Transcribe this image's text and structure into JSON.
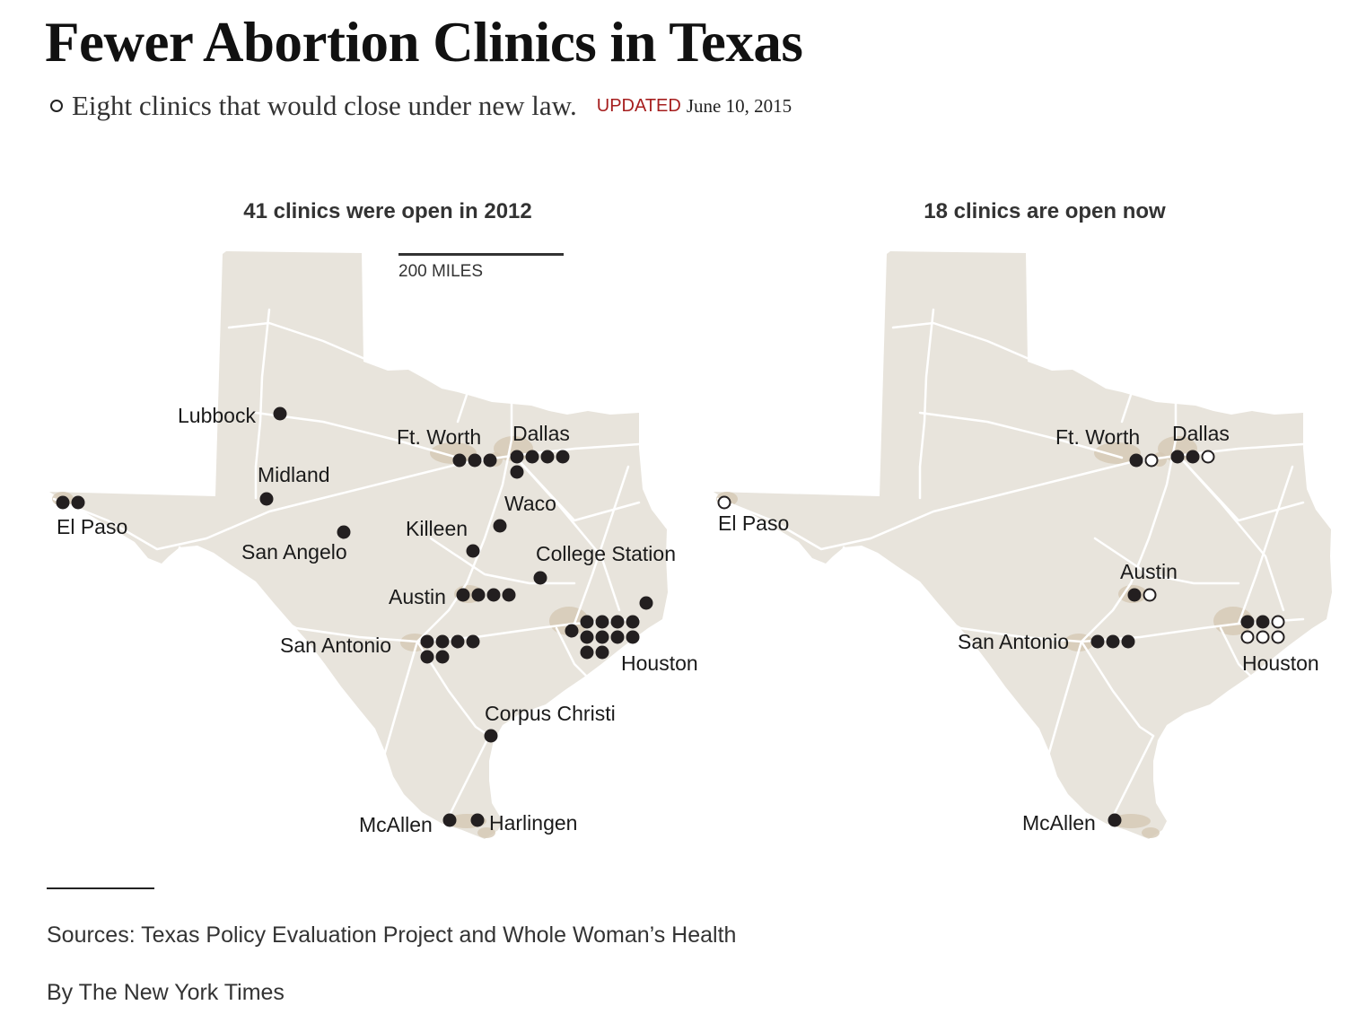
{
  "title": "Fewer Abortion Clinics in Texas",
  "legend": {
    "icon": "open-circle",
    "text": "Eight clinics that would close under new law."
  },
  "updated": {
    "label": "UPDATED",
    "date": "June 10, 2015"
  },
  "scale_label": "200 MILES",
  "colors": {
    "land": "#e8e4dc",
    "roads": "#ffffff",
    "urban": "#d4c8b4",
    "clinic_fill": "#231f20",
    "updated_red": "#a61e1e"
  },
  "maps": [
    {
      "title": "41 clinics were open in 2012",
      "cities": [
        {
          "name": "Lubbock",
          "open": 1,
          "closing": 0
        },
        {
          "name": "Midland",
          "open": 1,
          "closing": 0
        },
        {
          "name": "El Paso",
          "open": 2,
          "closing": 0
        },
        {
          "name": "San Angelo",
          "open": 1,
          "closing": 0
        },
        {
          "name": "Ft. Worth",
          "open": 3,
          "closing": 0
        },
        {
          "name": "Dallas",
          "open": 5,
          "closing": 0
        },
        {
          "name": "Waco",
          "open": 1,
          "closing": 0
        },
        {
          "name": "Killeen",
          "open": 1,
          "closing": 0
        },
        {
          "name": "College Station",
          "open": 1,
          "closing": 0
        },
        {
          "name": "Austin",
          "open": 4,
          "closing": 0
        },
        {
          "name": "San Antonio",
          "open": 6,
          "closing": 0
        },
        {
          "name": "Houston",
          "open": 12,
          "closing": 0
        },
        {
          "name": "Corpus Christi",
          "open": 1,
          "closing": 0
        },
        {
          "name": "McAllen",
          "open": 1,
          "closing": 0
        },
        {
          "name": "Harlingen",
          "open": 1,
          "closing": 0
        }
      ]
    },
    {
      "title": "18 clinics are open now",
      "cities": [
        {
          "name": "Ft. Worth",
          "open": 1,
          "closing": 1
        },
        {
          "name": "Dallas",
          "open": 2,
          "closing": 1
        },
        {
          "name": "El Paso",
          "open": 0,
          "closing": 1
        },
        {
          "name": "Austin",
          "open": 1,
          "closing": 1
        },
        {
          "name": "San Antonio",
          "open": 3,
          "closing": 0
        },
        {
          "name": "Houston",
          "open": 2,
          "closing": 4
        },
        {
          "name": "McAllen",
          "open": 1,
          "closing": 0
        }
      ]
    }
  ],
  "sources": "Sources: Texas Policy Evaluation Project and Whole Woman’s Health",
  "byline": "By The New York Times"
}
